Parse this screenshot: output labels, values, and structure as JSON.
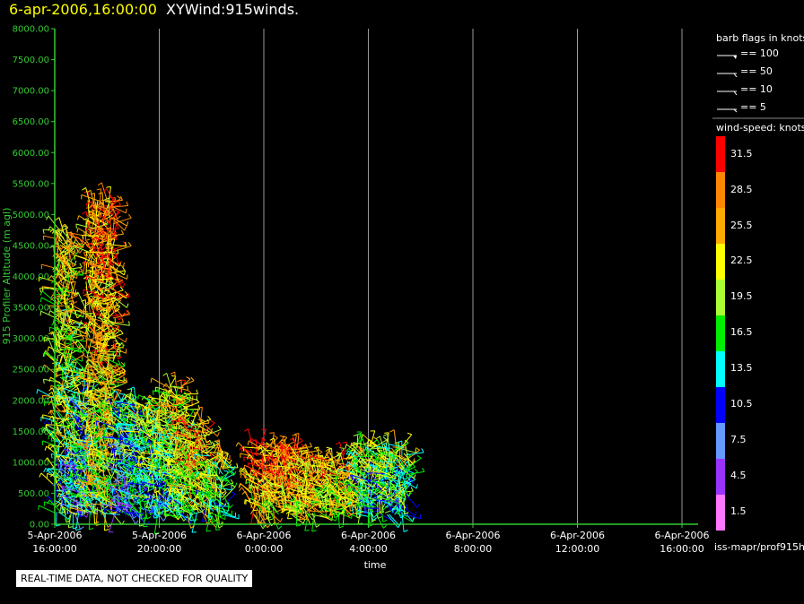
{
  "header": {
    "date": "6-apr-2006,16:00:00",
    "title": "XYWind:915winds."
  },
  "notice": "REAL-TIME DATA, NOT CHECKED FOR QUALITY",
  "source_label": "iss-mapr/prof915h",
  "colors": {
    "background": "#000000",
    "axis": "#33cc33",
    "ylabel": "#33cc33",
    "grid": "#aaaaaa",
    "text": "#ffffff"
  },
  "chart_data": {
    "type": "scatter",
    "title": "XYWind:915winds.",
    "xlabel": "time",
    "ylabel": "915 Profiler Altitude (m agl)",
    "ylim": [
      0,
      8000
    ],
    "yticks": [
      "0.00",
      "500.00",
      "1000.00",
      "1500.00",
      "2000.00",
      "2500.00",
      "3000.00",
      "3500.00",
      "4000.00",
      "4500.00",
      "5000.00",
      "5500.00",
      "6000.00",
      "6500.00",
      "7000.00",
      "7500.00",
      "8000.00"
    ],
    "xlim": [
      "2006-04-05 16:00",
      "2006-04-06 16:00"
    ],
    "xticks": [
      {
        "date": "5-Apr-2006",
        "time": "16:00:00",
        "hours": 0
      },
      {
        "date": "5-Apr-2006",
        "time": "20:00:00",
        "hours": 4
      },
      {
        "date": "6-Apr-2006",
        "time": "0:00:00",
        "hours": 8
      },
      {
        "date": "6-Apr-2006",
        "time": "4:00:00",
        "hours": 12
      },
      {
        "date": "6-Apr-2006",
        "time": "8:00:00",
        "hours": 16
      },
      {
        "date": "6-Apr-2006",
        "time": "12:00:00",
        "hours": 20
      },
      {
        "date": "6-Apr-2006",
        "time": "16:00:00",
        "hours": 24
      }
    ],
    "grid": true,
    "legend": "right",
    "wind_barb_clusters": [
      {
        "t_start": 0.0,
        "t_end": 0.7,
        "alt_top": 4800,
        "speed": 20
      },
      {
        "t_start": 0.7,
        "t_end": 1.3,
        "alt_top": 2200,
        "speed": 12
      },
      {
        "t_start": 1.2,
        "t_end": 2.3,
        "alt_top": 5300,
        "speed": 24
      },
      {
        "t_start": 2.3,
        "t_end": 3.2,
        "alt_top": 2000,
        "speed": 13
      },
      {
        "t_start": 3.2,
        "t_end": 4.3,
        "alt_top": 2000,
        "speed": 17
      },
      {
        "t_start": 4.3,
        "t_end": 5.0,
        "alt_top": 2300,
        "speed": 20
      },
      {
        "t_start": 5.0,
        "t_end": 5.8,
        "alt_top": 1700,
        "speed": 23
      },
      {
        "t_start": 5.8,
        "t_end": 6.5,
        "alt_top": 1200,
        "speed": 18
      },
      {
        "t_start": 7.5,
        "t_end": 9.5,
        "alt_top": 1300,
        "speed": 26
      },
      {
        "t_start": 9.5,
        "t_end": 11.5,
        "alt_top": 1100,
        "speed": 23
      },
      {
        "t_start": 11.5,
        "t_end": 13.5,
        "alt_top": 1300,
        "speed": 17
      }
    ]
  },
  "legend": {
    "barb_title": "barb flags in knots",
    "barb_flags": [
      {
        "label": "== 100",
        "value": 100
      },
      {
        "label": "== 50",
        "value": 50
      },
      {
        "label": "== 10",
        "value": 10
      },
      {
        "label": "== 5",
        "value": 5
      }
    ],
    "speed_title": "wind-speed: knots",
    "speed_scale": [
      {
        "label": "31.5",
        "color": "#ff0000"
      },
      {
        "label": "28.5",
        "color": "#ff8800"
      },
      {
        "label": "25.5",
        "color": "#ffaa00"
      },
      {
        "label": "22.5",
        "color": "#ffff00"
      },
      {
        "label": "19.5",
        "color": "#aaff33"
      },
      {
        "label": "16.5",
        "color": "#00ee00"
      },
      {
        "label": "13.5",
        "color": "#00ffff"
      },
      {
        "label": "10.5",
        "color": "#0000ff"
      },
      {
        "label": "7.5",
        "color": "#6699ff"
      },
      {
        "label": "4.5",
        "color": "#9933ff"
      },
      {
        "label": "1.5",
        "color": "#ff77ff"
      }
    ]
  }
}
